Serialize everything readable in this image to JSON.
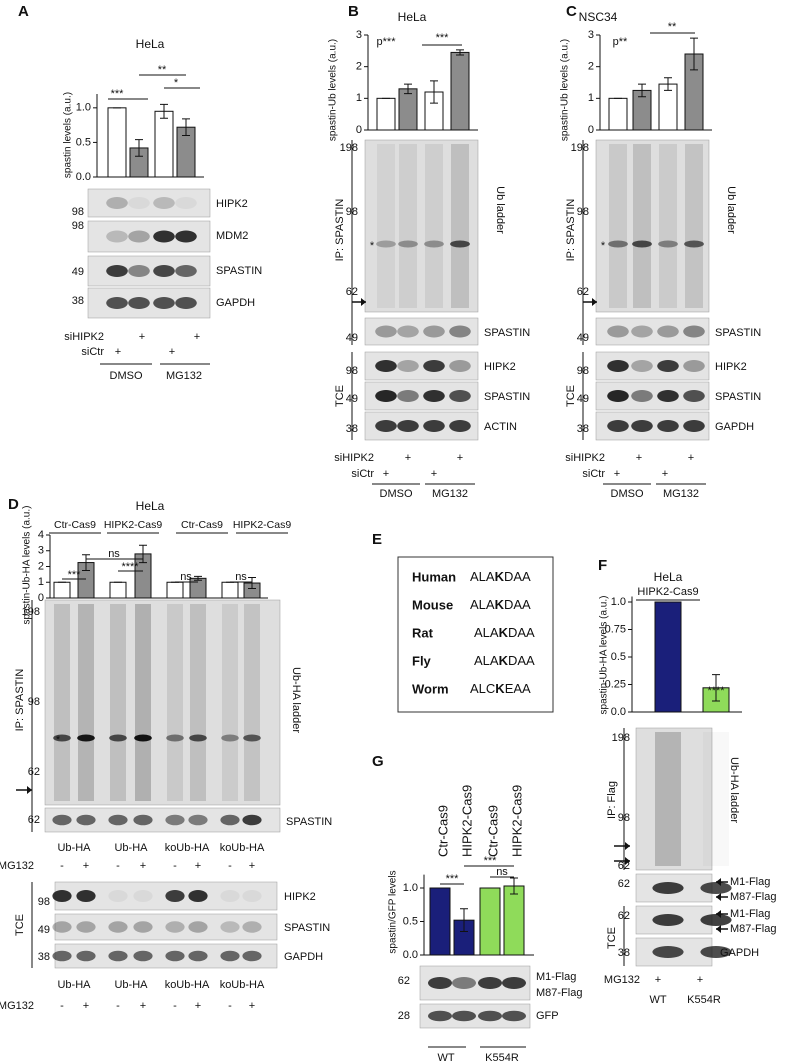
{
  "chart_data": [
    {
      "type": "bar",
      "title": "HeLa",
      "y_label": "spastin levels (a.u.)",
      "values": [
        1.0,
        0.42,
        0.95,
        0.72
      ],
      "errors": [
        0,
        0.12,
        0.1,
        0.12
      ],
      "colors": [
        "#ffffff",
        "#8c8c8c",
        "#ffffff",
        "#8c8c8c"
      ],
      "ylim": [
        0,
        1.2
      ],
      "yticks": [
        {
          "value": 0,
          "label": "0.0"
        },
        0.5,
        {
          "value": 1,
          "label": "1.0"
        }
      ],
      "annotations": [
        "***",
        "**",
        "*"
      ]
    },
    {
      "type": "bar",
      "title": "HeLa",
      "y_label": "spastin-Ub levels (a.u.)",
      "values": [
        1.0,
        1.3,
        1.2,
        2.45
      ],
      "errors": [
        0,
        0.15,
        0.35,
        0.08
      ],
      "colors": [
        "#ffffff",
        "#8c8c8c",
        "#ffffff",
        "#8c8c8c"
      ],
      "ylim": [
        0,
        3
      ],
      "yticks": [
        0,
        1,
        2,
        3
      ],
      "annotations": [
        "p***",
        "***"
      ]
    },
    {
      "type": "bar",
      "title": "NSC34",
      "y_label": "spastin-Ub levels (a.u.)",
      "values": [
        1.0,
        1.25,
        1.45,
        2.4
      ],
      "errors": [
        0,
        0.2,
        0.2,
        0.5
      ],
      "colors": [
        "#ffffff",
        "#8c8c8c",
        "#ffffff",
        "#8c8c8c"
      ],
      "ylim": [
        0,
        3
      ],
      "yticks": [
        0,
        1,
        2,
        3
      ],
      "annotations": [
        "p**",
        "**"
      ]
    },
    {
      "type": "bar",
      "title": "HeLa",
      "groups": [
        "Ctr-Cas9",
        "HIPK2-Cas9",
        "Ctr-Cas9",
        "HIPK2-Cas9"
      ],
      "y_label": "spastin-Ub-HA levels (a.u.)",
      "values": [
        1.0,
        2.25,
        1.0,
        2.8,
        1.0,
        1.25,
        1.0,
        0.95
      ],
      "errors": [
        0,
        0.5,
        0,
        0.55,
        0,
        0.12,
        0,
        0.35
      ],
      "colors": [
        "#ffffff",
        "#8c8c8c",
        "#ffffff",
        "#8c8c8c",
        "#ffffff",
        "#8c8c8c",
        "#ffffff",
        "#8c8c8c"
      ],
      "ylim": [
        0,
        4
      ],
      "yticks": [
        0,
        1,
        2,
        3,
        4
      ],
      "annotations": [
        "***",
        "ns",
        "****",
        "ns",
        "ns"
      ]
    },
    {
      "type": "bar",
      "title": "HeLa",
      "subtitle": "HIPK2-Cas9",
      "y_label": "spastin-Ub-HA levels (a.u.)",
      "values": [
        1.0,
        0.22
      ],
      "errors": [
        0,
        0.12
      ],
      "colors": [
        "#1a1f7a",
        "#8fdb5a"
      ],
      "ylim": [
        0,
        1.05
      ],
      "yticks": [
        {
          "value": 0,
          "label": "0.0"
        },
        0.25,
        0.5,
        0.75,
        {
          "value": 1,
          "label": "1.0"
        }
      ],
      "annotations": [
        "****"
      ]
    },
    {
      "type": "bar",
      "column_labels": [
        "Ctr-Cas9",
        "HIPK2-Cas9",
        "Ctr-Cas9",
        "HIPK2-Cas9"
      ],
      "y_label": "spastin/GFP levels",
      "values": [
        1.0,
        0.52,
        1.0,
        1.03
      ],
      "errors": [
        0,
        0.17,
        0,
        0.12
      ],
      "colors": [
        "#1a1f7a",
        "#1a1f7a",
        "#8fdb5a",
        "#8fdb5a"
      ],
      "ylim": [
        0,
        1.2
      ],
      "yticks": [
        {
          "value": 0,
          "label": "0.0"
        },
        0.5,
        {
          "value": 1,
          "label": "1.0"
        }
      ],
      "annotations": [
        "***",
        "***",
        "ns"
      ]
    }
  ],
  "panel_letters": [
    "A",
    "B",
    "C",
    "D",
    "E",
    "F",
    "G"
  ],
  "blots": [
    {
      "texts": [
        "HIPK2",
        "MDM2",
        "SPASTIN",
        "GAPDH",
        "98",
        "98",
        "49",
        "38",
        "siHIPK2",
        "+",
        "+",
        "siCtr",
        "+",
        "+",
        "DMSO",
        "MG132"
      ]
    },
    {
      "texts": [
        "Ub ladder",
        "IP: SPASTIN",
        "198",
        "98",
        "62",
        "49",
        "*",
        "SPASTIN",
        "HIPK2",
        "SPASTIN",
        "ACTIN",
        "TCE",
        "98",
        "49",
        "38",
        "siHIPK2",
        "+",
        "+",
        "siCtr",
        "+",
        "+",
        "DMSO",
        "MG132"
      ]
    },
    {
      "texts": [
        "Ub  ladder",
        "IP: SPASTIN",
        "198",
        "98",
        "62",
        "49",
        "*",
        "SPASTIN",
        "HIPK2",
        "SPASTIN",
        "GAPDH",
        "TCE",
        "98",
        "49",
        "38",
        "siHIPK2",
        "+",
        "+",
        "siCtr",
        "+",
        "+",
        "DMSO",
        "MG132"
      ]
    },
    {
      "texts": [
        "IP: SPASTIN",
        "Ub-HA  ladder",
        "198",
        "98",
        "*",
        "62",
        "62",
        "SPASTIN",
        "Ub-HA",
        "Ub-HA",
        "koUb-HA",
        "koUb-HA",
        "MG132",
        "-",
        "+",
        "-",
        "+",
        "-",
        "+",
        "-",
        "+",
        "TCE",
        "HIPK2",
        "SPASTIN",
        "GAPDH",
        "98",
        "49",
        "38",
        "Ub-HA",
        "Ub-HA",
        "koUb-HA",
        "koUb-HA",
        "MG132",
        "-",
        "+",
        "-",
        "+",
        "-",
        "+",
        "-",
        "+"
      ]
    },
    {
      "texts": [
        "IP: Flag",
        "Ub-HA ladder",
        "198",
        "98",
        "62",
        "M1-Flag",
        "M87-Flag",
        "62",
        "TCE",
        "M1-Flag",
        "M87-Flag",
        "62",
        "GAPDH",
        "38",
        "MG132",
        "+",
        "+",
        "WT",
        "K554R"
      ]
    },
    {
      "texts": [
        "M1-Flag",
        "M87-Flag",
        "62",
        "GFP",
        "28",
        "WT",
        "K554R"
      ]
    }
  ],
  "alignment": {
    "rows": [
      {
        "species": "Human",
        "prefix": "ALA",
        "site": "K",
        "suffix": "DAA"
      },
      {
        "species": "Mouse",
        "prefix": "ALA",
        "site": "K",
        "suffix": "DAA"
      },
      {
        "species": "Rat",
        "prefix": "ALA",
        "site": "K",
        "suffix": "DAA"
      },
      {
        "species": "Fly",
        "prefix": "ALA",
        "site": "K",
        "suffix": "DAA"
      },
      {
        "species": "Worm",
        "prefix": "ALC",
        "site": "K",
        "suffix": "EAA"
      }
    ]
  }
}
